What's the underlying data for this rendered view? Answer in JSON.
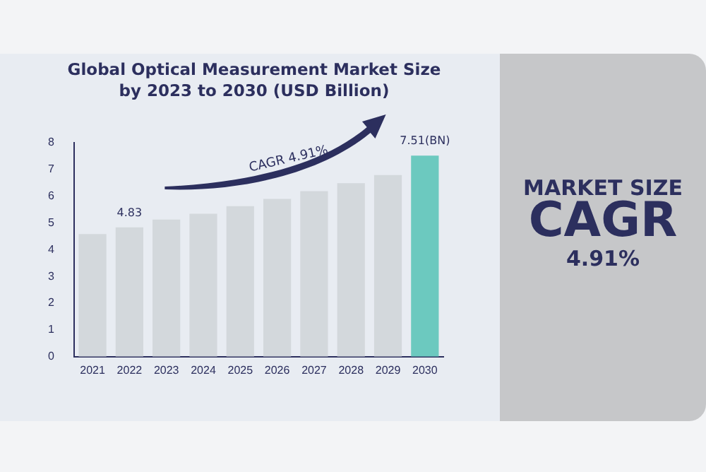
{
  "chart_data": {
    "type": "bar",
    "title": "Global Optical Measurement Market Size by 2023 to 2030 (USD Billion)",
    "categories": [
      "2021",
      "2022",
      "2023",
      "2024",
      "2025",
      "2026",
      "2027",
      "2028",
      "2029",
      "2030"
    ],
    "values": [
      4.58,
      4.83,
      5.12,
      5.34,
      5.62,
      5.89,
      6.18,
      6.48,
      6.78,
      7.51
    ],
    "colors": [
      "#d3d8dc",
      "#d3d8dc",
      "#d3d8dc",
      "#d3d8dc",
      "#d3d8dc",
      "#d3d8dc",
      "#d3d8dc",
      "#d3d8dc",
      "#d3d8dc",
      "#6cc9bf"
    ],
    "value_labels": [
      null,
      "4.83",
      null,
      null,
      null,
      null,
      null,
      null,
      null,
      "7.51(BN)"
    ],
    "ylim": [
      0,
      8
    ],
    "yticks": [
      0,
      1,
      2,
      3,
      4,
      5,
      6,
      7,
      8
    ],
    "grid": false,
    "legend": false,
    "annotations": [
      "CAGR 4.91%",
      "MARKET SIZE",
      "CAGR",
      "4.91%"
    ]
  }
}
